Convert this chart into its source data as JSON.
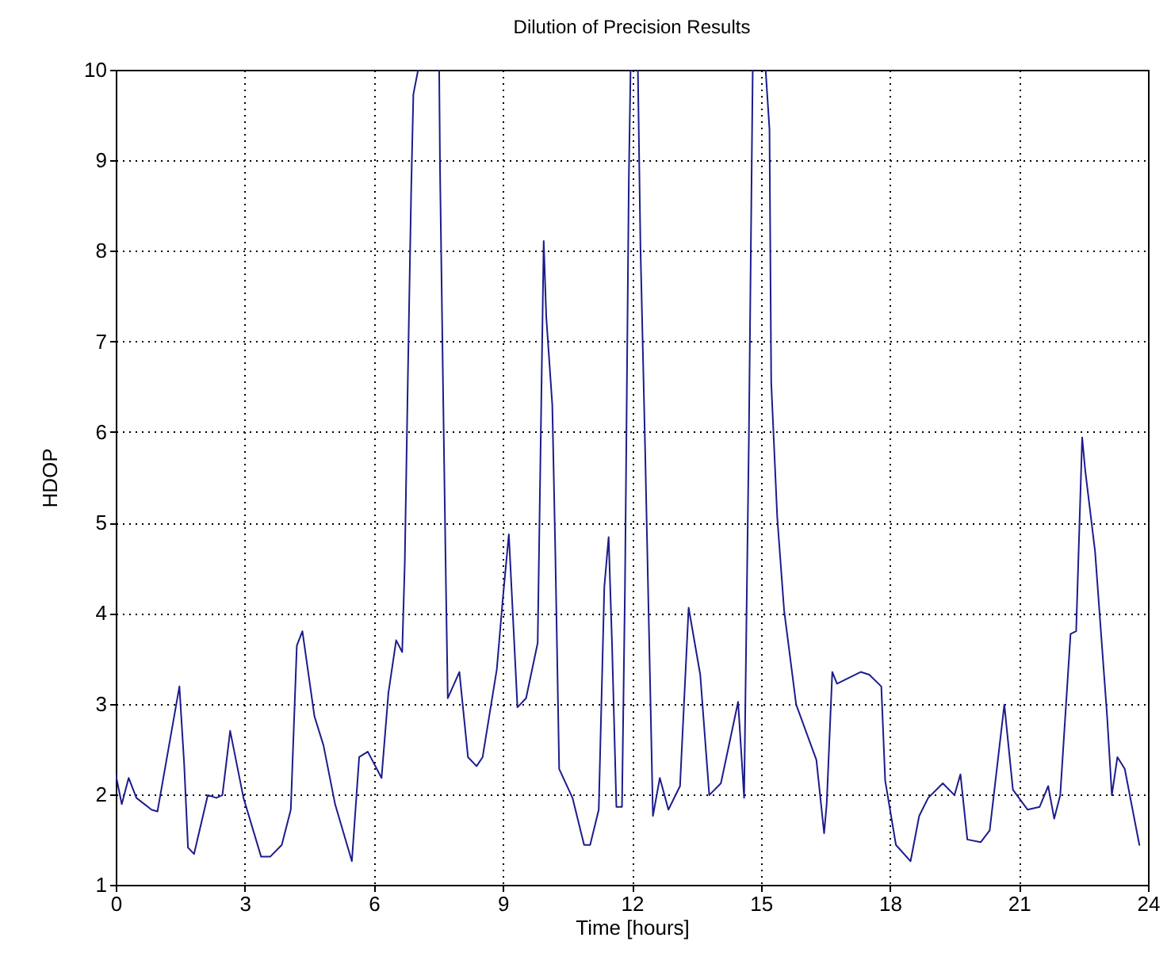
{
  "chart_data": {
    "type": "line",
    "title": "Dilution of Precision Results",
    "xlabel": "Time [hours]",
    "ylabel": "HDOP",
    "xlim": [
      0,
      24
    ],
    "xticks": [
      0,
      3,
      6,
      9,
      12,
      15,
      18,
      21,
      24
    ],
    "ylim": [
      1,
      10
    ],
    "yticks": [
      1,
      2,
      3,
      4,
      5,
      6,
      7,
      8,
      9,
      10
    ],
    "grid": true,
    "marker": "none",
    "line_style": "solid",
    "series": [
      {
        "color": "#1c1c8c",
        "x": [
          0,
          0.14,
          0.3,
          0.48,
          0.83,
          0.97,
          1.48,
          1.59,
          1.68,
          1.82,
          2.14,
          2.34,
          2.48,
          2.66,
          2.97,
          3.38,
          3.59,
          3.86,
          4.07,
          4.21,
          4.34,
          4.62,
          4.83,
          5.1,
          5.49,
          5.66,
          5.86,
          6.18,
          6.34,
          6.52,
          6.66,
          6.72,
          6.79,
          6.87,
          6.92,
          7.03,
          7.3,
          7.52,
          7.54,
          7.61,
          7.68,
          7.72,
          7.99,
          8.19,
          8.39,
          8.53,
          8.86,
          9.0,
          9.14,
          9.34,
          9.54,
          9.81,
          9.95,
          10.01,
          10.15,
          10.22,
          10.31,
          10.62,
          10.89,
          11.03,
          11.23,
          11.36,
          11.46,
          11.54,
          11.64,
          11.77,
          11.84,
          11.93,
          11.97,
          12.05,
          12.14,
          12.2,
          12.31,
          12.42,
          12.49,
          12.65,
          12.85,
          13.12,
          13.32,
          13.59,
          13.8,
          14.07,
          14.47,
          14.61,
          14.72,
          14.81,
          14.95,
          15.11,
          15.2,
          15.24,
          15.38,
          15.54,
          15.82,
          16.29,
          16.47,
          16.53,
          16.66,
          16.77,
          17.32,
          17.52,
          17.8,
          17.89,
          18.14,
          18.48,
          18.68,
          18.89,
          19.23,
          19.5,
          19.64,
          19.8,
          20.11,
          20.32,
          20.66,
          20.86,
          21.2,
          21.48,
          21.68,
          21.82,
          21.96,
          22.2,
          22.33,
          22.47,
          22.54,
          22.77,
          23.05,
          23.16,
          23.29,
          23.46,
          23.8
        ],
        "values": [
          2.22,
          1.89,
          2.18,
          1.96,
          1.83,
          1.81,
          3.19,
          2.34,
          1.41,
          1.34,
          1.99,
          1.96,
          1.99,
          2.7,
          1.96,
          1.31,
          1.31,
          1.44,
          1.83,
          3.64,
          3.8,
          2.86,
          2.54,
          1.89,
          1.26,
          2.41,
          2.47,
          2.18,
          3.12,
          3.7,
          3.57,
          4.55,
          6.55,
          8.69,
          9.73,
          10,
          null,
          10,
          8.89,
          6.49,
          4.22,
          3.06,
          3.35,
          2.41,
          2.31,
          2.41,
          3.38,
          4.16,
          4.87,
          2.96,
          3.06,
          3.67,
          8.11,
          7.27,
          6.3,
          4.68,
          2.28,
          1.96,
          1.44,
          1.44,
          1.83,
          4.29,
          4.84,
          3.64,
          1.86,
          1.86,
          4.29,
          8.82,
          10,
          null,
          10,
          8.04,
          5.78,
          3.32,
          1.76,
          2.18,
          1.83,
          2.09,
          4.06,
          3.32,
          1.99,
          2.12,
          3.02,
          1.96,
          5.91,
          10,
          null,
          10,
          9.34,
          6.55,
          5.06,
          4.03,
          2.99,
          2.38,
          1.57,
          1.89,
          3.35,
          3.22,
          3.35,
          3.32,
          3.19,
          2.15,
          1.44,
          1.26,
          1.76,
          1.96,
          2.12,
          1.99,
          2.22,
          1.5,
          1.47,
          1.6,
          2.99,
          2.05,
          1.83,
          1.86,
          2.09,
          1.73,
          1.99,
          3.77,
          3.8,
          5.94,
          5.58,
          4.68,
          2.86,
          1.99,
          2.41,
          2.28,
          1.44
        ]
      }
    ]
  }
}
